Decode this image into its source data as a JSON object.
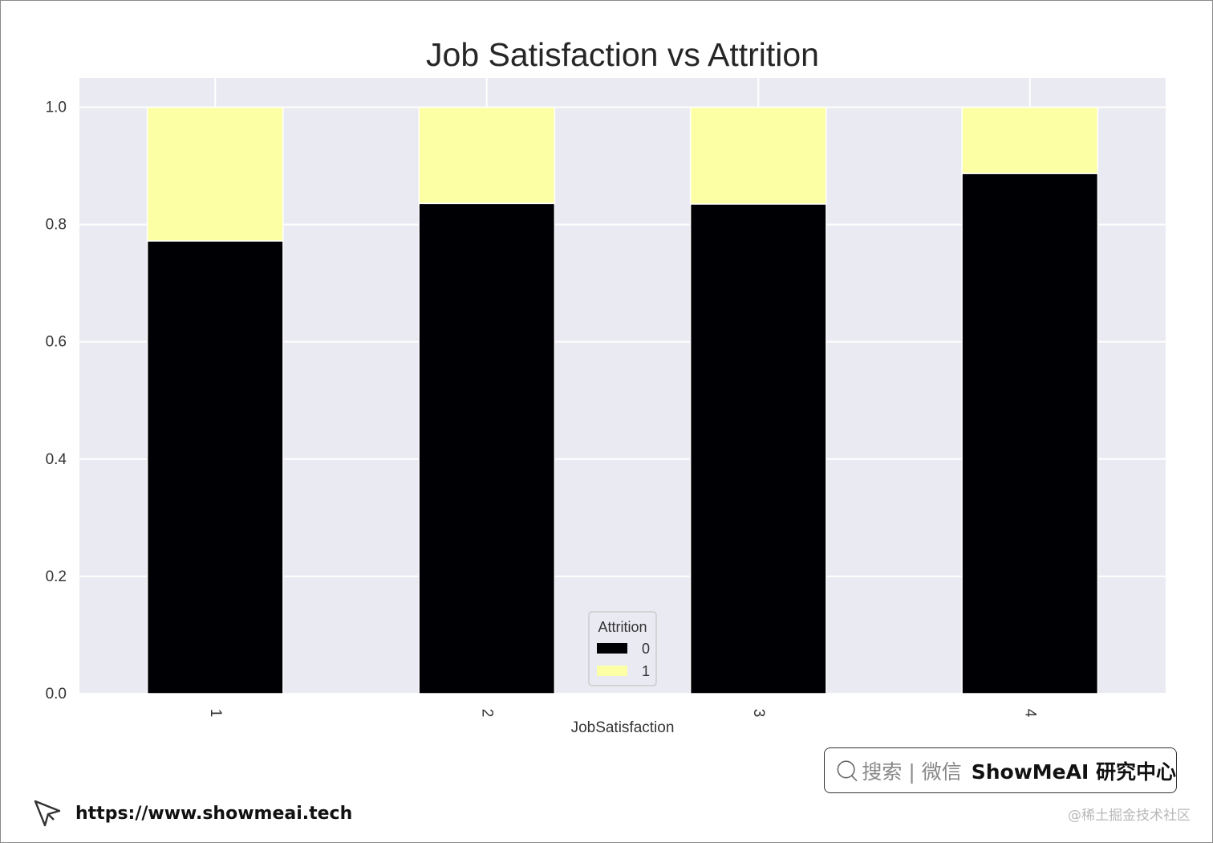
{
  "chart_data": {
    "type": "bar",
    "stacked": true,
    "title": "Job Satisfaction vs Attrition",
    "xlabel": "JobSatisfaction",
    "ylabel": "",
    "categories": [
      "1",
      "2",
      "3",
      "4"
    ],
    "ylim": [
      0,
      1.05
    ],
    "yticks": [
      "0.0",
      "0.2",
      "0.4",
      "0.6",
      "0.8",
      "1.0"
    ],
    "grid": true,
    "legend": {
      "title": "Attrition",
      "position": "bottom-center"
    },
    "series": [
      {
        "name": "0",
        "color": "#000004",
        "values": [
          0.772,
          0.836,
          0.835,
          0.887
        ]
      },
      {
        "name": "1",
        "color": "#fcffa4",
        "values": [
          0.228,
          0.164,
          0.165,
          0.113
        ]
      }
    ],
    "background": "#eaeaf2"
  },
  "watermark": {
    "search_hint": "搜索 | 微信",
    "brand": "ShowMeAI 研究中心",
    "url": "https://www.showmeai.tech",
    "credit": "@稀土掘金技术社区"
  }
}
